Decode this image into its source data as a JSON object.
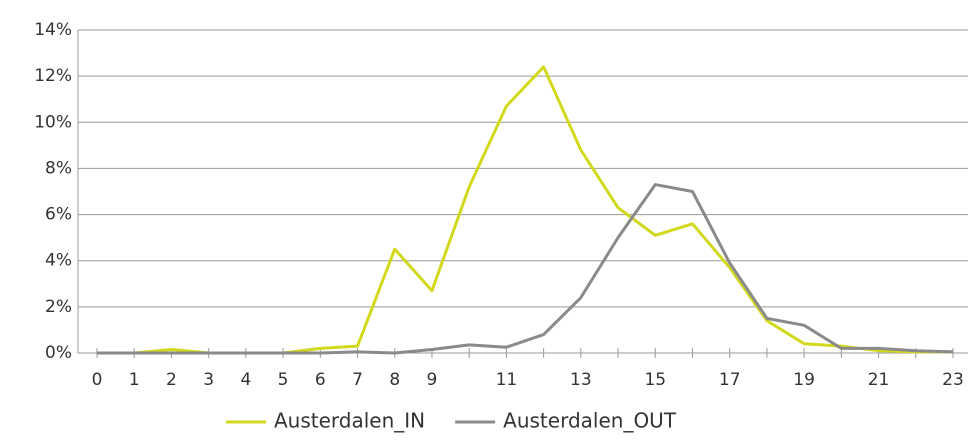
{
  "chart_data": {
    "type": "line",
    "categories": [
      "0",
      "1",
      "2",
      "3",
      "4",
      "5",
      "6",
      "7",
      "8",
      "9",
      null,
      "11",
      null,
      "13",
      null,
      "15",
      null,
      "17",
      null,
      "19",
      null,
      "21",
      null,
      "23"
    ],
    "series": [
      {
        "name": "Austerdalen_IN",
        "color": "#d2d91c",
        "values": [
          0,
          0,
          0.15,
          0,
          0,
          0,
          0.2,
          0.3,
          4.5,
          2.7,
          7.2,
          10.7,
          12.4,
          8.8,
          6.3,
          5.1,
          5.6,
          3.7,
          1.4,
          0.4,
          0.3,
          0.1,
          0.05,
          0.05
        ]
      },
      {
        "name": "Austerdalen_OUT",
        "color": "#8a8a8a",
        "values": [
          0,
          0,
          0,
          0,
          0,
          0,
          0,
          0.05,
          0,
          0.15,
          0.35,
          0.25,
          0.8,
          2.4,
          5.0,
          7.3,
          7.0,
          3.9,
          1.5,
          1.2,
          0.2,
          0.2,
          0.1,
          0.05
        ]
      }
    ],
    "ylim": [
      0,
      14
    ],
    "yticks": [
      {
        "value": 0,
        "label": "0%"
      },
      {
        "value": 2,
        "label": "2%"
      },
      {
        "value": 4,
        "label": "4%"
      },
      {
        "value": 6,
        "label": "6%"
      },
      {
        "value": 8,
        "label": "8%"
      },
      {
        "value": 10,
        "label": "10%"
      },
      {
        "value": 12,
        "label": "12%"
      },
      {
        "value": 14,
        "label": "14%"
      }
    ],
    "grid": true,
    "legend": "bottom"
  }
}
